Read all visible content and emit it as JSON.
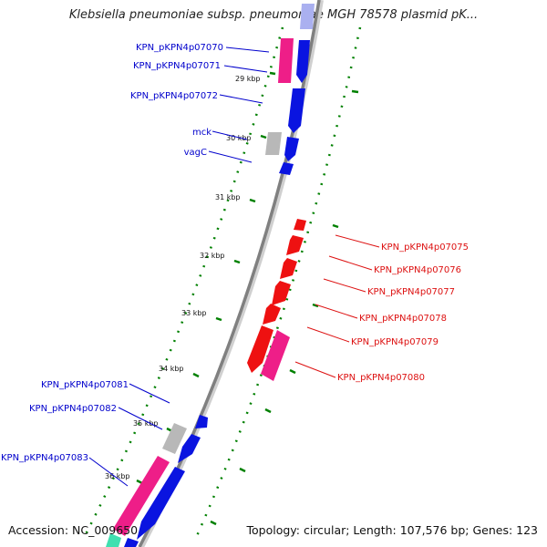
{
  "title": "Klebsiella pneumoniae subsp. pneumoniae MGH 78578 plasmid pK...",
  "footer": {
    "accession": "Accession: NC_009650",
    "summary": "Topology: circular; Length: 107,576 bp; Genes: 123"
  },
  "colors": {
    "forward_label": "#0000cc",
    "reverse_label": "#dd1111",
    "tick": "#008000",
    "backbone": "#888888",
    "blue_gene": "#0a14e0",
    "pink_gene": "#ee1e88",
    "red_gene": "#ee1111",
    "grey_gene": "#b8b8b8"
  },
  "scale_ticks": [
    "29 kbp",
    "30 kbp",
    "31 kbp",
    "32 kbp",
    "33 kbp",
    "34 kbp",
    "35 kbp",
    "36 kbp"
  ],
  "forward_gene_labels": [
    "KPN_pKPN4p07070",
    "KPN_pKPN4p07071",
    "KPN_pKPN4p07072",
    "mck",
    "vagC",
    "KPN_pKPN4p07081",
    "KPN_pKPN4p07082",
    "KPN_pKPN4p07083"
  ],
  "reverse_gene_labels": [
    "KPN_pKPN4p07075",
    "KPN_pKPN4p07076",
    "KPN_pKPN4p07077",
    "KPN_pKPN4p07078",
    "KPN_pKPN4p07079",
    "KPN_pKPN4p07080"
  ]
}
